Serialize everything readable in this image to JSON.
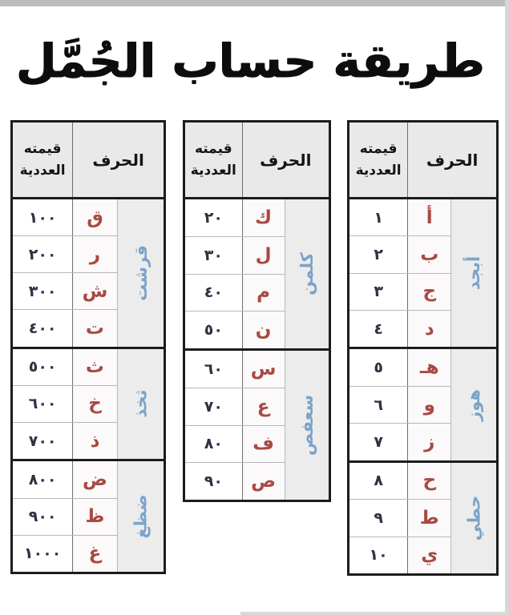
{
  "title": "طريقة حساب الجُمَّل",
  "column_headers": {
    "value_line1": "قيمته",
    "value_line2": "العددية",
    "letter": "الحرف"
  },
  "colors": {
    "letter_red": "#a84a42",
    "group_blue": "#7ba3c8",
    "number_navy": "#2c3342",
    "header_bg": "#e9e9e9",
    "group_bg": "#ececec",
    "table_border": "#1c1c1c"
  },
  "tables": [
    {
      "name": "hundreds",
      "position": "left",
      "groups": [
        {
          "label": "قرشت",
          "rows": [
            {
              "letter": "ق",
              "value": "١٠٠"
            },
            {
              "letter": "ر",
              "value": "٢٠٠"
            },
            {
              "letter": "ش",
              "value": "٣٠٠"
            },
            {
              "letter": "ت",
              "value": "٤٠٠"
            }
          ]
        },
        {
          "label": "ثخذ",
          "rows": [
            {
              "letter": "ث",
              "value": "٥٠٠"
            },
            {
              "letter": "خ",
              "value": "٦٠٠"
            },
            {
              "letter": "ذ",
              "value": "٧٠٠"
            }
          ]
        },
        {
          "label": "ضظغ",
          "rows": [
            {
              "letter": "ض",
              "value": "٨٠٠"
            },
            {
              "letter": "ظ",
              "value": "٩٠٠"
            },
            {
              "letter": "غ",
              "value": "١٠٠٠"
            }
          ]
        }
      ]
    },
    {
      "name": "tens",
      "position": "middle",
      "groups": [
        {
          "label": "كلمن",
          "rows": [
            {
              "letter": "ك",
              "value": "٢٠"
            },
            {
              "letter": "ل",
              "value": "٣٠"
            },
            {
              "letter": "م",
              "value": "٤٠"
            },
            {
              "letter": "ن",
              "value": "٥٠"
            }
          ]
        },
        {
          "label": "سعفص",
          "rows": [
            {
              "letter": "س",
              "value": "٦٠"
            },
            {
              "letter": "ع",
              "value": "٧٠"
            },
            {
              "letter": "ف",
              "value": "٨٠"
            },
            {
              "letter": "ص",
              "value": "٩٠"
            }
          ]
        }
      ]
    },
    {
      "name": "units",
      "position": "right",
      "groups": [
        {
          "label": "أبجد",
          "rows": [
            {
              "letter": "أ",
              "value": "١"
            },
            {
              "letter": "ب",
              "value": "٢"
            },
            {
              "letter": "ج",
              "value": "٣"
            },
            {
              "letter": "د",
              "value": "٤"
            }
          ]
        },
        {
          "label": "هوز",
          "rows": [
            {
              "letter": "هـ",
              "value": "٥"
            },
            {
              "letter": "و",
              "value": "٦"
            },
            {
              "letter": "ز",
              "value": "٧"
            }
          ]
        },
        {
          "label": "حطي",
          "rows": [
            {
              "letter": "ح",
              "value": "٨"
            },
            {
              "letter": "ط",
              "value": "٩"
            },
            {
              "letter": "ي",
              "value": "١٠"
            }
          ]
        }
      ]
    }
  ]
}
